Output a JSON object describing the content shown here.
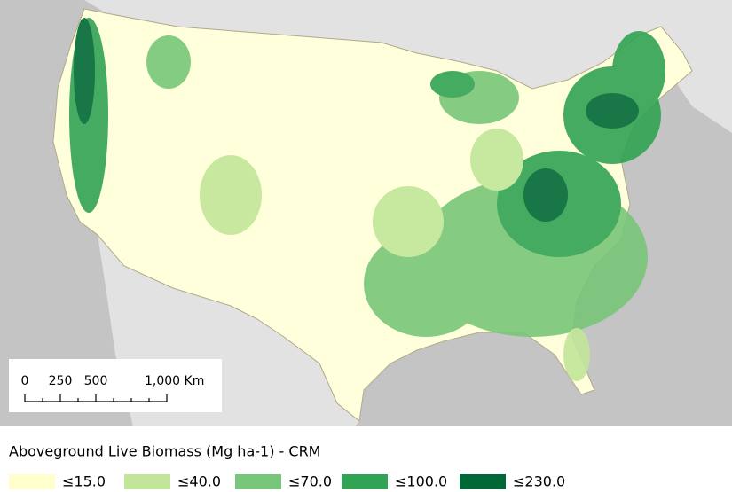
{
  "scale_bar": {
    "labels": [
      "0",
      "250",
      "500",
      "1,000 Km"
    ]
  },
  "legend": {
    "title": "Aboveground Live Biomass (Mg ha-1) - CRM",
    "items": [
      {
        "label": "≤15.0",
        "color": "#ffffcc"
      },
      {
        "label": "≤40.0",
        "color": "#c2e699"
      },
      {
        "label": "≤70.0",
        "color": "#78c679"
      },
      {
        "label": "≤100.0",
        "color": "#31a354"
      },
      {
        "label": "≤230.0",
        "color": "#006837"
      }
    ]
  }
}
